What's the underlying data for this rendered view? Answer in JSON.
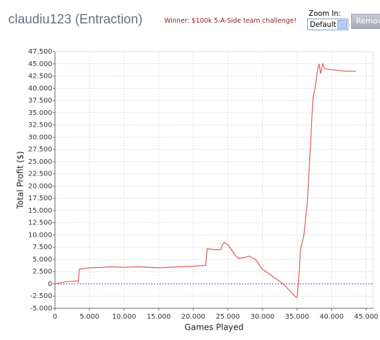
{
  "header": {
    "title": "claudiu123 (Entraction)",
    "notice": "Winner: $100k 5-A-Side team challenge!",
    "zoom_label": "Zoom In:",
    "zoom_option": "Default",
    "button": "Remov"
  },
  "chart_data": {
    "type": "line",
    "x_label": "Games Played",
    "y_label": "Total Profit ($)",
    "color": "#e05555",
    "grid": true,
    "x": [
      0,
      1000,
      2000,
      3300,
      3400,
      3500,
      5000,
      7000,
      8000,
      10000,
      12000,
      15000,
      18000,
      20000,
      21000,
      21800,
      22000,
      23000,
      24000,
      24200,
      24500,
      25000,
      25500,
      26000,
      26500,
      27500,
      28000,
      29000,
      30000,
      31000,
      33000,
      34000,
      34800,
      35000,
      35200,
      35500,
      36000,
      36500,
      37000,
      37300,
      37600,
      38000,
      38200,
      38400,
      38700,
      39000,
      40000,
      42000,
      43500
    ],
    "values": [
      0,
      300,
      500,
      600,
      400,
      3000,
      3300,
      3400,
      3500,
      3400,
      3500,
      3300,
      3500,
      3600,
      3700,
      3800,
      7200,
      7000,
      7000,
      8000,
      8500,
      8000,
      7000,
      6000,
      5200,
      5400,
      5700,
      5000,
      3000,
      2000,
      0,
      -1500,
      -2700,
      -2800,
      0,
      7000,
      10000,
      17000,
      30000,
      38000,
      40000,
      44000,
      45000,
      43000,
      45000,
      44000,
      43800,
      43500,
      43500
    ],
    "xlim": [
      0,
      46000
    ],
    "xticks": [
      0,
      {
        "value": 5000,
        "label": "5.000"
      },
      {
        "value": 10000,
        "label": "10.000"
      },
      {
        "value": 15000,
        "label": "15.000"
      },
      {
        "value": 20000,
        "label": "20.000"
      },
      {
        "value": 25000,
        "label": "25.000"
      },
      {
        "value": 30000,
        "label": "30.000"
      },
      {
        "value": 35000,
        "label": "35.000"
      },
      {
        "value": 40000,
        "label": "40.000"
      },
      {
        "value": 45000,
        "label": "45.000"
      }
    ],
    "ylim": [
      -5000,
      47500
    ],
    "yticks": [
      {
        "value": -5000,
        "label": "-5.000"
      },
      {
        "value": -2500,
        "label": "-2.500"
      },
      0,
      {
        "value": 2500,
        "label": "2.500"
      },
      {
        "value": 5000,
        "label": "5.000"
      },
      {
        "value": 7500,
        "label": "7.500"
      },
      {
        "value": 10000,
        "label": "10.000"
      },
      {
        "value": 12500,
        "label": "12.500"
      },
      {
        "value": 15000,
        "label": "15.000"
      },
      {
        "value": 17500,
        "label": "17.500"
      },
      {
        "value": 20000,
        "label": "20.000"
      },
      {
        "value": 22500,
        "label": "22.500"
      },
      {
        "value": 25000,
        "label": "25.000"
      },
      {
        "value": 27500,
        "label": "27.500"
      },
      {
        "value": 30000,
        "label": "30.000"
      },
      {
        "value": 32500,
        "label": "32.500"
      },
      {
        "value": 35000,
        "label": "35.000"
      },
      {
        "value": 37500,
        "label": "37.500"
      },
      {
        "value": 40000,
        "label": "40.000"
      },
      {
        "value": 42500,
        "label": "42.500"
      },
      {
        "value": 45000,
        "label": "45.000"
      },
      {
        "value": 47500,
        "label": "47.500"
      }
    ]
  }
}
